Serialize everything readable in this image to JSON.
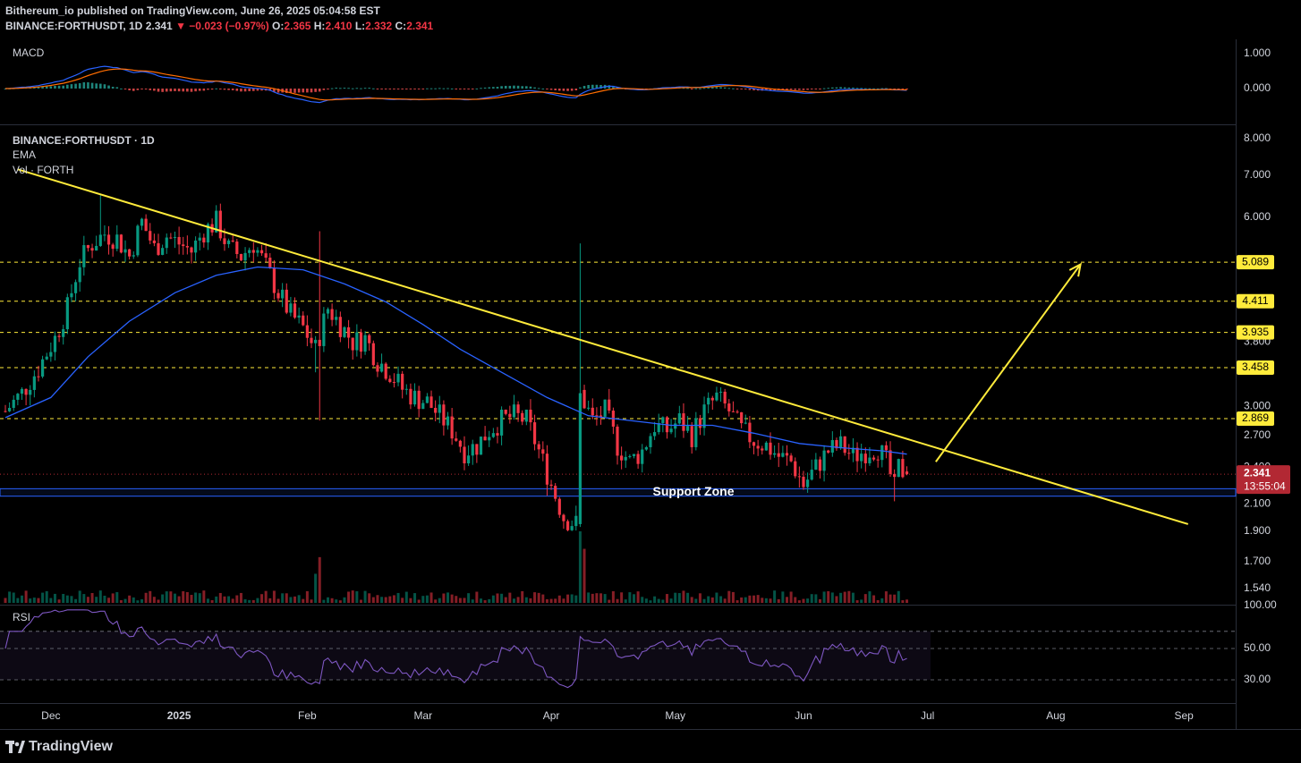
{
  "header": {
    "published_line": "Bithereum_io published on TradingView.com, June 26, 2025 05:04:58 EST",
    "symbol": "BINANCE:FORTHUSDT, 1D",
    "last": "2.341",
    "change": "−0.023 (−0.97%)",
    "open_label": "O:",
    "open": "2.365",
    "high_label": "H:",
    "high": "2.410",
    "low_label": "L:",
    "low": "2.332",
    "close_label": "C:",
    "close": "2.341"
  },
  "panes": {
    "macd": {
      "title": "MACD",
      "ticks": [
        "1.000",
        "0.000"
      ],
      "tick_values": [
        1.0,
        0.0
      ]
    },
    "price": {
      "title": "BINANCE:FORTHUSDT · 1D",
      "ema_label": "EMA",
      "vol_label": "Vol · FORTH",
      "ticks": [
        "8.000",
        "7.000",
        "6.000",
        "3.800",
        "3.000",
        "2.700",
        "2.400",
        "2.100",
        "1.900",
        "1.700",
        "1.540"
      ],
      "tick_values": [
        8.0,
        7.0,
        6.0,
        3.8,
        3.0,
        2.7,
        2.4,
        2.1,
        1.9,
        1.7,
        1.54
      ]
    },
    "rsi": {
      "title": "RSI",
      "ticks": [
        "100.00",
        "50.00",
        "30.00"
      ],
      "tick_values": [
        100,
        50,
        30
      ]
    }
  },
  "chart_data": {
    "type": "candlestick",
    "symbol": "BINANCE:FORTHUSDT",
    "interval": "1D",
    "y_scale": "log",
    "ylim": [
      1.54,
      8.0
    ],
    "x_ticks": [
      "Dec",
      "2025",
      "Feb",
      "Mar",
      "Apr",
      "May",
      "Jun",
      "Jul",
      "Aug",
      "Sep"
    ],
    "x_tick_dates": [
      "2024-12-01",
      "2025-01-01",
      "2025-02-01",
      "2025-03-01",
      "2025-04-01",
      "2025-05-01",
      "2025-06-01",
      "2025-07-01",
      "2025-08-01",
      "2025-09-01"
    ],
    "x_range": [
      "2024-11-20",
      "2025-09-12"
    ],
    "close_series": [
      [
        "2024-11-20",
        2.95
      ],
      [
        "2024-11-24",
        3.15
      ],
      [
        "2024-11-28",
        3.45
      ],
      [
        "2024-12-02",
        3.85
      ],
      [
        "2024-12-05",
        4.3
      ],
      [
        "2024-12-08",
        5.1
      ],
      [
        "2024-12-11",
        5.45
      ],
      [
        "2024-12-14",
        5.65
      ],
      [
        "2024-12-17",
        5.55
      ],
      [
        "2024-12-20",
        5.2
      ],
      [
        "2024-12-23",
        5.9
      ],
      [
        "2024-12-26",
        5.35
      ],
      [
        "2024-12-29",
        5.6
      ],
      [
        "2025-01-01",
        5.45
      ],
      [
        "2025-01-04",
        5.3
      ],
      [
        "2025-01-07",
        5.7
      ],
      [
        "2025-01-10",
        5.9
      ],
      [
        "2025-01-13",
        5.35
      ],
      [
        "2025-01-16",
        5.2
      ],
      [
        "2025-01-19",
        5.45
      ],
      [
        "2025-01-22",
        5.0
      ],
      [
        "2025-01-25",
        4.55
      ],
      [
        "2025-01-28",
        4.2
      ],
      [
        "2025-01-31",
        4.0
      ],
      [
        "2025-02-03",
        3.7
      ],
      [
        "2025-02-06",
        4.3
      ],
      [
        "2025-02-09",
        4.05
      ],
      [
        "2025-02-12",
        3.8
      ],
      [
        "2025-02-15",
        3.85
      ],
      [
        "2025-02-18",
        3.55
      ],
      [
        "2025-02-21",
        3.4
      ],
      [
        "2025-02-24",
        3.2
      ],
      [
        "2025-02-27",
        3.1
      ],
      [
        "2025-03-02",
        3.05
      ],
      [
        "2025-03-05",
        2.9
      ],
      [
        "2025-03-08",
        2.75
      ],
      [
        "2025-03-11",
        2.55
      ],
      [
        "2025-03-14",
        2.6
      ],
      [
        "2025-03-17",
        2.75
      ],
      [
        "2025-03-20",
        2.85
      ],
      [
        "2025-03-23",
        2.9
      ],
      [
        "2025-03-26",
        2.85
      ],
      [
        "2025-03-29",
        2.55
      ],
      [
        "2025-04-01",
        2.25
      ],
      [
        "2025-04-04",
        2.0
      ],
      [
        "2025-04-07",
        1.95
      ],
      [
        "2025-04-08",
        3.15
      ],
      [
        "2025-04-11",
        2.85
      ],
      [
        "2025-04-14",
        2.95
      ],
      [
        "2025-04-17",
        2.6
      ],
      [
        "2025-04-20",
        2.45
      ],
      [
        "2025-04-23",
        2.55
      ],
      [
        "2025-04-26",
        2.8
      ],
      [
        "2025-04-29",
        2.75
      ],
      [
        "2025-05-02",
        2.85
      ],
      [
        "2025-05-05",
        2.7
      ],
      [
        "2025-05-08",
        2.95
      ],
      [
        "2025-05-11",
        3.1
      ],
      [
        "2025-05-14",
        2.95
      ],
      [
        "2025-05-17",
        2.75
      ],
      [
        "2025-05-20",
        2.65
      ],
      [
        "2025-05-23",
        2.6
      ],
      [
        "2025-05-26",
        2.5
      ],
      [
        "2025-05-29",
        2.45
      ],
      [
        "2025-06-01",
        2.25
      ],
      [
        "2025-06-04",
        2.4
      ],
      [
        "2025-06-07",
        2.55
      ],
      [
        "2025-06-10",
        2.6
      ],
      [
        "2025-06-13",
        2.5
      ],
      [
        "2025-06-16",
        2.55
      ],
      [
        "2025-06-19",
        2.58
      ],
      [
        "2025-06-21",
        2.45
      ],
      [
        "2025-06-23",
        2.22
      ],
      [
        "2025-06-24",
        2.4
      ],
      [
        "2025-06-26",
        2.341
      ]
    ],
    "ema_series": [
      [
        "2024-11-20",
        2.88
      ],
      [
        "2024-12-01",
        3.1
      ],
      [
        "2024-12-10",
        3.6
      ],
      [
        "2024-12-20",
        4.1
      ],
      [
        "2024-12-31",
        4.55
      ],
      [
        "2025-01-10",
        4.85
      ],
      [
        "2025-01-20",
        5.0
      ],
      [
        "2025-01-31",
        4.95
      ],
      [
        "2025-02-10",
        4.7
      ],
      [
        "2025-02-20",
        4.4
      ],
      [
        "2025-03-01",
        4.05
      ],
      [
        "2025-03-10",
        3.7
      ],
      [
        "2025-03-20",
        3.4
      ],
      [
        "2025-03-31",
        3.1
      ],
      [
        "2025-04-10",
        2.9
      ],
      [
        "2025-04-20",
        2.85
      ],
      [
        "2025-04-30",
        2.8
      ],
      [
        "2025-05-10",
        2.8
      ],
      [
        "2025-05-20",
        2.72
      ],
      [
        "2025-05-31",
        2.62
      ],
      [
        "2025-06-10",
        2.58
      ],
      [
        "2025-06-20",
        2.55
      ],
      [
        "2025-06-26",
        2.52
      ]
    ],
    "horizontal_levels": [
      {
        "value": 5.089,
        "label": "5.089"
      },
      {
        "value": 4.411,
        "label": "4.411"
      },
      {
        "value": 3.935,
        "label": "3.935"
      },
      {
        "value": 3.458,
        "label": "3.458"
      },
      {
        "value": 2.869,
        "label": "2.869"
      }
    ],
    "current_price": {
      "value": 2.341,
      "label": "2.341",
      "countdown": "13:55:04"
    },
    "support_zone": {
      "label": "Support Zone",
      "low": 2.16,
      "high": 2.22
    },
    "trendline": {
      "start": [
        "2024-11-23",
        7.15
      ],
      "end": [
        "2025-09-02",
        1.95
      ]
    },
    "projection_arrow": {
      "start": [
        "2025-07-03",
        2.45
      ],
      "end": [
        "2025-08-07",
        5.05
      ]
    },
    "colors": {
      "up": "#089981",
      "down": "#f23645",
      "ema": "#2962ff",
      "trendline": "#ffeb3b",
      "levels": "#ffeb3b",
      "macd": "#2962ff",
      "signal": "#ff6d00",
      "rsi": "#7e57c2",
      "current": "#b22833"
    }
  }
}
